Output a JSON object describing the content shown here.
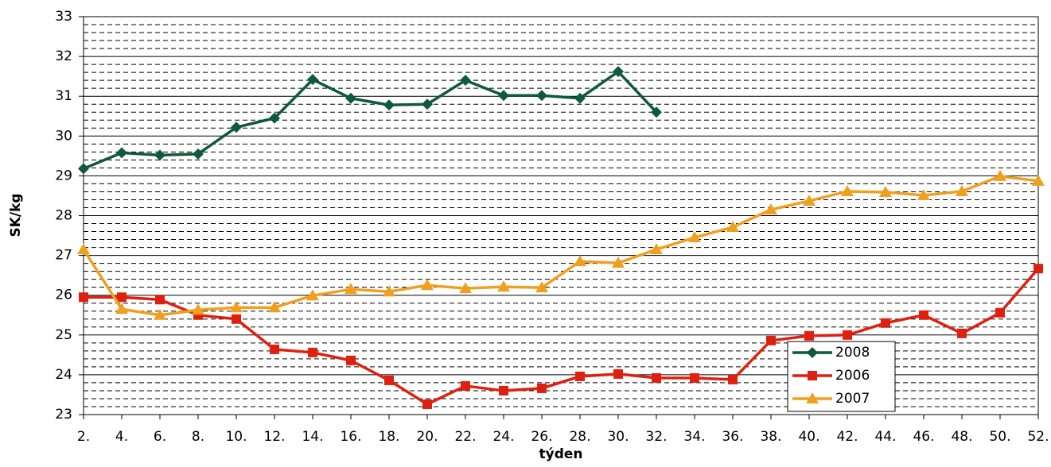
{
  "chart_data": {
    "type": "line",
    "x_label": "týden",
    "y_label": "SK/kg",
    "categories": [
      "2.",
      "4.",
      "6.",
      "8.",
      "10.",
      "12.",
      "14.",
      "16.",
      "18.",
      "20.",
      "22.",
      "24.",
      "26.",
      "28.",
      "30.",
      "32.",
      "34.",
      "36.",
      "38.",
      "40.",
      "42.",
      "44.",
      "46.",
      "48.",
      "50.",
      "52."
    ],
    "series": [
      {
        "name": "2008",
        "color": "#0f5a3c",
        "marker": "diamond",
        "values": [
          29.18,
          29.58,
          29.52,
          29.55,
          30.22,
          30.45,
          31.42,
          30.95,
          30.78,
          30.8,
          31.4,
          31.02,
          31.02,
          30.95,
          31.62,
          30.6,
          null,
          null,
          null,
          null,
          null,
          null,
          null,
          null,
          null,
          null
        ]
      },
      {
        "name": "2006",
        "color": "#e0200f",
        "marker": "square",
        "values": [
          25.95,
          25.95,
          25.89,
          25.5,
          25.4,
          24.64,
          24.56,
          24.36,
          23.86,
          23.26,
          23.72,
          23.6,
          23.66,
          23.96,
          24.02,
          23.92,
          23.92,
          23.88,
          24.86,
          24.98,
          25.0,
          25.3,
          25.5,
          25.04,
          25.56,
          26.67
        ]
      },
      {
        "name": "2007",
        "color": "#f0a020",
        "marker": "triangle",
        "values": [
          27.15,
          25.65,
          25.5,
          25.63,
          25.69,
          25.69,
          25.99,
          26.15,
          26.09,
          26.25,
          26.17,
          26.21,
          26.19,
          26.85,
          26.81,
          27.15,
          27.45,
          27.71,
          28.15,
          28.37,
          28.61,
          28.59,
          28.51,
          28.61,
          28.99,
          28.87
        ]
      }
    ],
    "ylim": [
      23,
      33
    ],
    "yticks": [
      23,
      24,
      25,
      26,
      27,
      28,
      29,
      30,
      31,
      32,
      33
    ],
    "grid": true,
    "minor_grid": true,
    "legend": "lower right"
  }
}
